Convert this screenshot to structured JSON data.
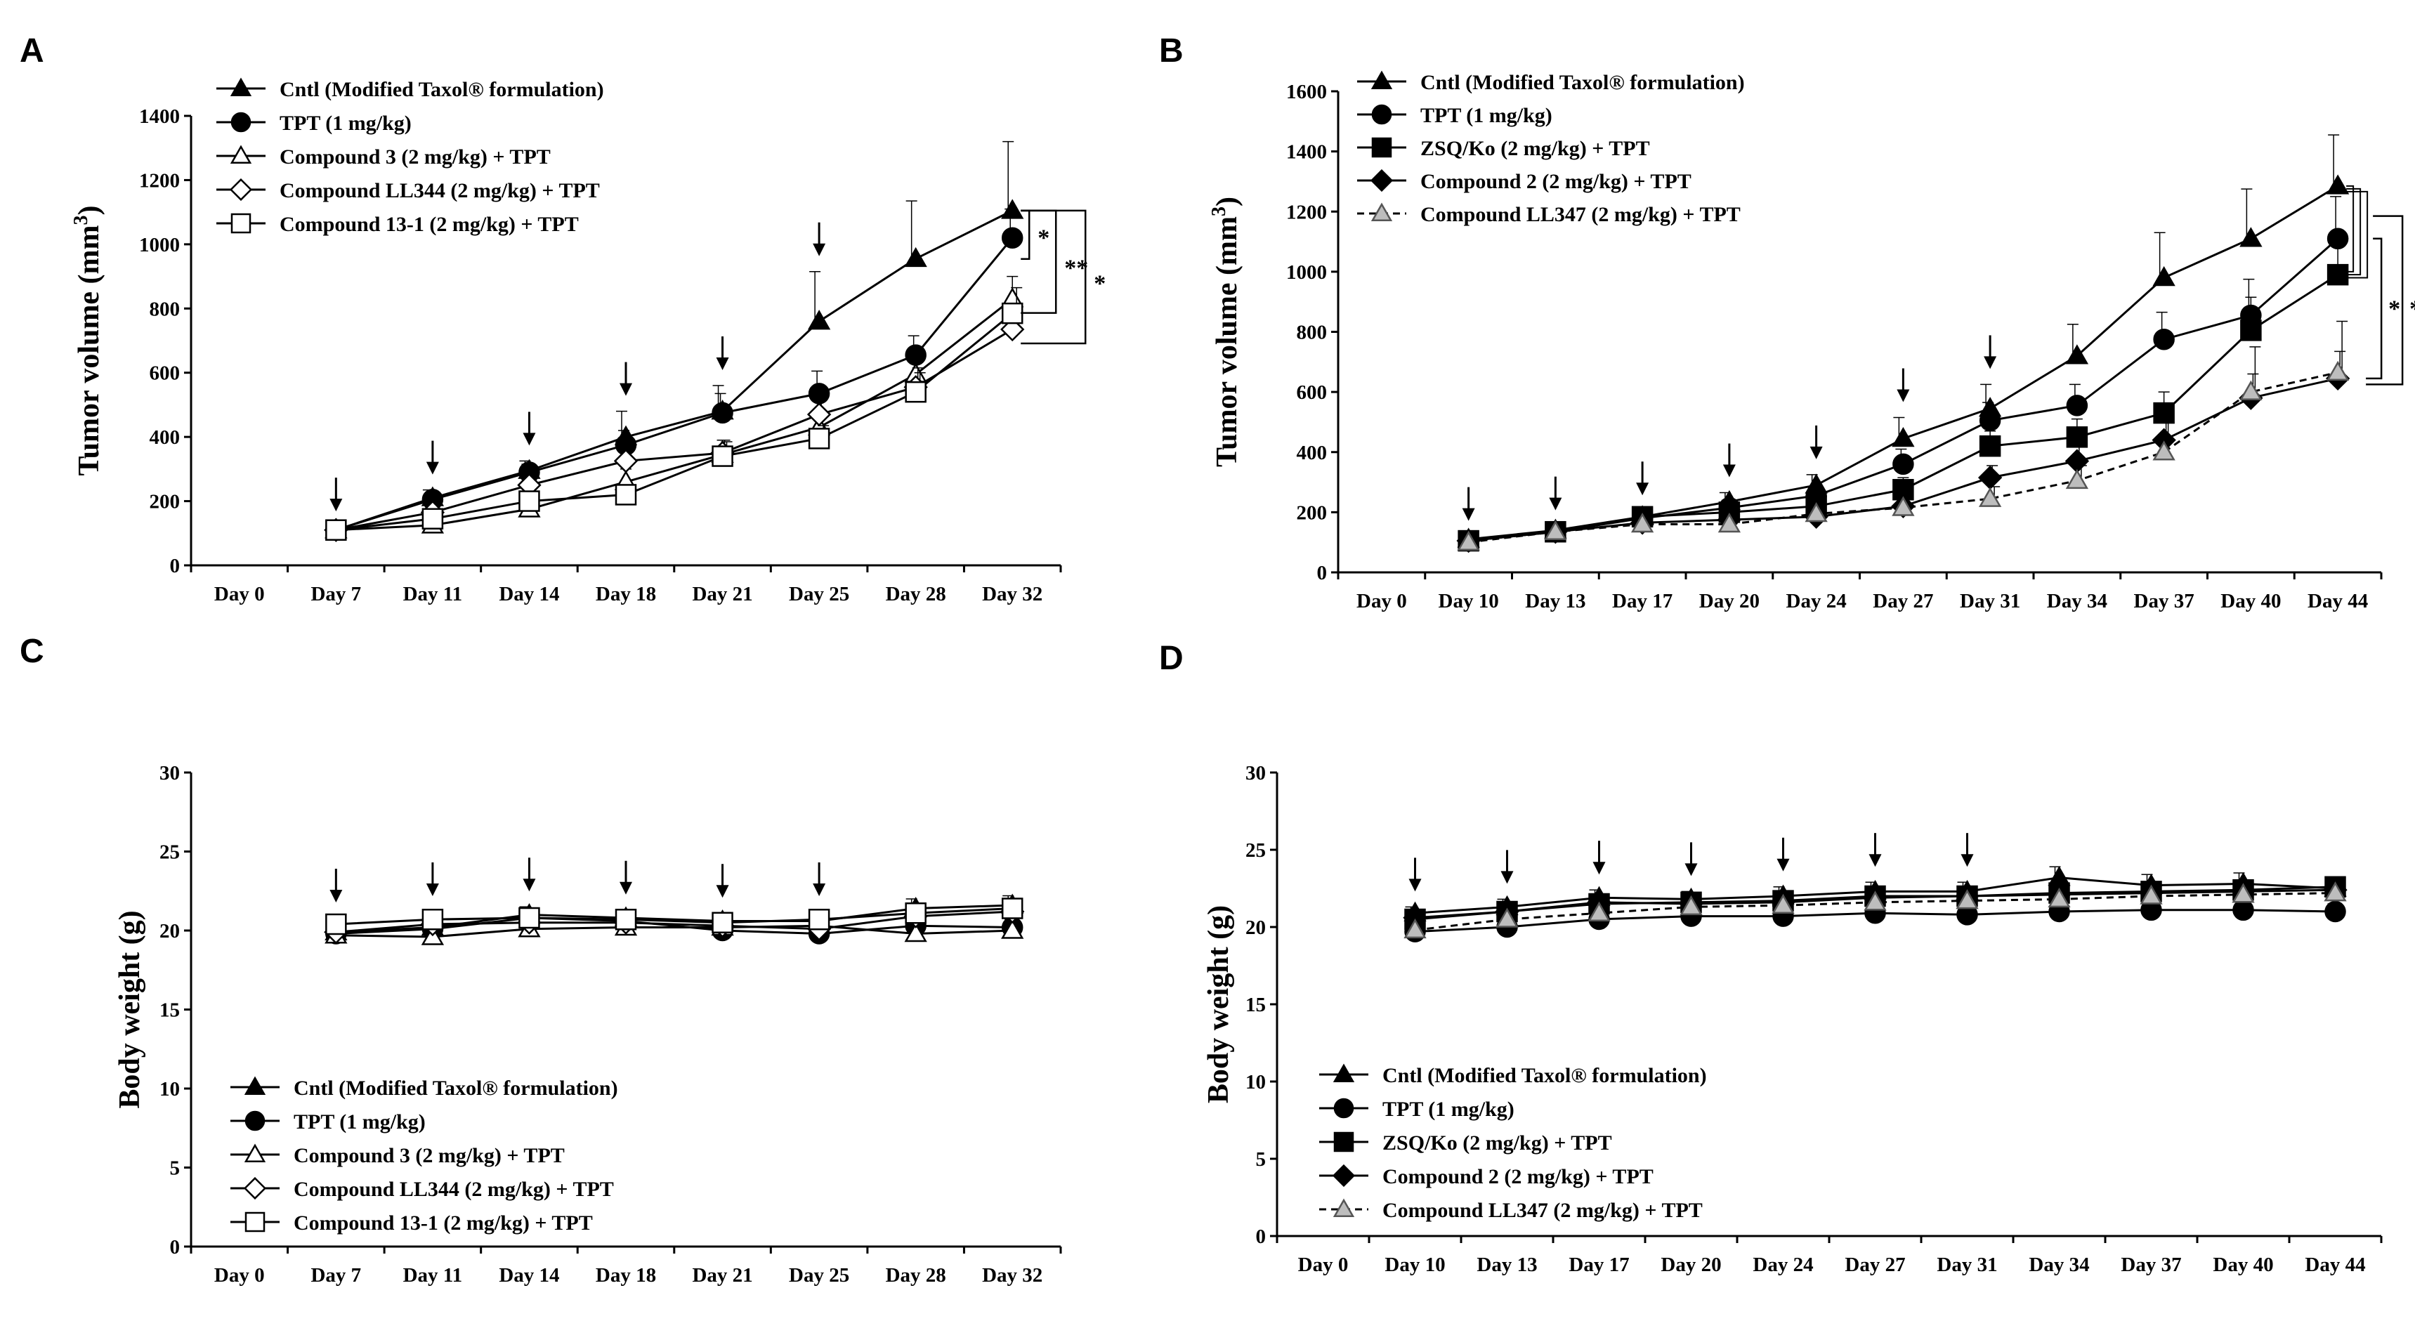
{
  "chart_data": [
    {
      "panel": "A",
      "type": "line",
      "ylabel": "Tumor volume (mm3)",
      "ylabel_main": "Tumor volume (mm",
      "ylabel_sup": "3",
      "ylabel_end": ")",
      "ylim": [
        0,
        1400
      ],
      "yticks": [
        0,
        200,
        400,
        600,
        800,
        1000,
        1200,
        1400
      ],
      "categories": [
        "Day 0",
        "Day 7",
        "Day 11",
        "Day 14",
        "Day 18",
        "Day 21",
        "Day 25",
        "Day 28",
        "Day 32"
      ],
      "arrows_at": [
        "Day 7",
        "Day 11",
        "Day 14",
        "Day 18",
        "Day 21",
        "Day 25"
      ],
      "significance": [
        "*",
        "**",
        "*"
      ],
      "series": [
        {
          "name": "Cntl (Modified Taxol® formulation)",
          "marker": "triangle-filled",
          "dashed": false,
          "values": [
            null,
            110,
            210,
            295,
            400,
            480,
            760,
            955,
            1105
          ],
          "err": [
            null,
            10,
            25,
            30,
            80,
            80,
            155,
            180,
            215
          ]
        },
        {
          "name": "TPT (1 mg/kg)",
          "marker": "circle-filled",
          "dashed": false,
          "values": [
            null,
            110,
            205,
            290,
            375,
            475,
            535,
            655,
            1020
          ],
          "err": [
            null,
            10,
            20,
            25,
            45,
            60,
            70,
            60,
            90
          ]
        },
        {
          "name": "Compound 3 (2 mg/kg) + TPT",
          "marker": "triangle-open",
          "dashed": false,
          "values": [
            null,
            110,
            125,
            175,
            260,
            345,
            430,
            595,
            830
          ],
          "err": [
            null,
            10,
            15,
            20,
            40,
            45,
            50,
            60,
            70
          ]
        },
        {
          "name": "Compound LL344 (2 mg/kg) + TPT",
          "marker": "diamond-open",
          "dashed": false,
          "values": [
            null,
            110,
            165,
            250,
            325,
            350,
            470,
            555,
            735
          ],
          "err": [
            null,
            10,
            20,
            25,
            40,
            40,
            50,
            60,
            70
          ]
        },
        {
          "name": "Compound 13-1 (2 mg/kg) + TPT",
          "marker": "square-open",
          "dashed": false,
          "values": [
            null,
            110,
            145,
            200,
            220,
            340,
            395,
            540,
            785
          ],
          "err": [
            null,
            10,
            20,
            25,
            30,
            45,
            40,
            60,
            80
          ]
        }
      ]
    },
    {
      "panel": "B",
      "type": "line",
      "ylabel": "Tumor volume (mm3)",
      "ylabel_main": "Tumor volume (mm",
      "ylabel_sup": "3",
      "ylabel_end": ")",
      "ylim": [
        0,
        1600
      ],
      "yticks": [
        0,
        200,
        400,
        600,
        800,
        1000,
        1200,
        1400,
        1600
      ],
      "categories": [
        "Day 0",
        "Day 10",
        "Day 13",
        "Day 17",
        "Day 20",
        "Day 24",
        "Day 27",
        "Day 31",
        "Day 34",
        "Day 37",
        "Day 40",
        "Day 44"
      ],
      "arrows_at": [
        "Day 10",
        "Day 13",
        "Day 17",
        "Day 20",
        "Day 24",
        "Day 27",
        "Day 31"
      ],
      "significance": [
        "*",
        "*"
      ],
      "series": [
        {
          "name": "Cntl (Modified Taxol® formulation)",
          "marker": "triangle-filled",
          "dashed": false,
          "values": [
            null,
            110,
            140,
            185,
            235,
            290,
            445,
            545,
            720,
            980,
            1110,
            1285
          ],
          "err": [
            null,
            10,
            15,
            20,
            30,
            35,
            70,
            80,
            105,
            150,
            165,
            170
          ]
        },
        {
          "name": "TPT (1 mg/kg)",
          "marker": "circle-filled",
          "dashed": false,
          "values": [
            null,
            105,
            135,
            180,
            215,
            255,
            360,
            505,
            555,
            775,
            855,
            1110
          ],
          "err": [
            null,
            10,
            15,
            20,
            25,
            30,
            50,
            60,
            70,
            90,
            120,
            140
          ]
        },
        {
          "name": "ZSQ/Ko (2 mg/kg) + TPT",
          "marker": "square-filled",
          "dashed": false,
          "values": [
            null,
            105,
            135,
            185,
            200,
            220,
            275,
            420,
            450,
            530,
            805,
            990
          ],
          "err": [
            null,
            10,
            15,
            20,
            25,
            25,
            40,
            50,
            60,
            70,
            110,
            120
          ]
        },
        {
          "name": "Compound 2 (2 mg/kg) + TPT",
          "marker": "diamond-filled",
          "dashed": false,
          "values": [
            null,
            105,
            135,
            165,
            175,
            185,
            220,
            315,
            370,
            440,
            580,
            645
          ],
          "err": [
            null,
            10,
            15,
            15,
            20,
            20,
            30,
            40,
            50,
            60,
            80,
            90
          ]
        },
        {
          "name": "Compound LL347 (2 mg/kg) + TPT",
          "marker": "triangle-grey",
          "dashed": true,
          "values": [
            null,
            100,
            135,
            160,
            160,
            195,
            215,
            245,
            305,
            400,
            600,
            665
          ],
          "err": [
            null,
            10,
            15,
            15,
            20,
            20,
            30,
            40,
            50,
            100,
            150,
            170
          ]
        }
      ]
    },
    {
      "panel": "C",
      "type": "line",
      "ylabel": "Body weight (g)",
      "ylim": [
        0,
        30
      ],
      "yticks": [
        0,
        5,
        10,
        15,
        20,
        25,
        30
      ],
      "categories": [
        "Day 0",
        "Day 7",
        "Day 11",
        "Day 14",
        "Day 18",
        "Day 21",
        "Day 25",
        "Day 28",
        "Day 32"
      ],
      "arrows_at": [
        "Day 7",
        "Day 11",
        "Day 14",
        "Day 18",
        "Day 21",
        "Day 25"
      ],
      "series": [
        {
          "name": "Cntl (Modified Taxol® formulation)",
          "marker": "triangle-filled",
          "dashed": false,
          "values": [
            null,
            19.9,
            20.2,
            21.0,
            20.8,
            20.6,
            20.6,
            21.4,
            21.6
          ],
          "err": [
            null,
            0.4,
            0.5,
            0.5,
            0.5,
            0.5,
            0.5,
            0.6,
            0.6
          ]
        },
        {
          "name": "TPT (1 mg/kg)",
          "marker": "circle-filled",
          "dashed": false,
          "values": [
            null,
            19.8,
            20.1,
            20.8,
            20.6,
            20.0,
            19.8,
            20.3,
            20.2
          ],
          "err": [
            null,
            0.4,
            0.5,
            0.5,
            0.5,
            0.5,
            0.5,
            0.5,
            0.5
          ]
        },
        {
          "name": "Compound 3 (2 mg/kg) + TPT",
          "marker": "triangle-open",
          "dashed": false,
          "values": [
            null,
            19.7,
            19.6,
            20.1,
            20.2,
            20.2,
            20.3,
            19.8,
            20.0
          ],
          "err": [
            null,
            0.4,
            0.6,
            0.5,
            0.5,
            0.5,
            0.5,
            0.5,
            0.5
          ]
        },
        {
          "name": "Compound LL344 (2 mg/kg) + TPT",
          "marker": "diamond-open",
          "dashed": false,
          "values": [
            null,
            19.9,
            20.4,
            20.5,
            20.5,
            20.3,
            20.1,
            20.9,
            21.2
          ],
          "err": [
            null,
            0.4,
            0.5,
            0.5,
            0.5,
            0.5,
            0.5,
            0.5,
            0.5
          ]
        },
        {
          "name": "Compound 13-1 (2 mg/kg) + TPT",
          "marker": "square-open",
          "dashed": false,
          "values": [
            null,
            20.4,
            20.7,
            20.8,
            20.7,
            20.5,
            20.7,
            21.1,
            21.4
          ],
          "err": [
            null,
            0.4,
            0.5,
            0.5,
            0.5,
            0.5,
            0.5,
            0.5,
            0.5
          ]
        }
      ]
    },
    {
      "panel": "D",
      "type": "line",
      "ylabel": "Body weight (g)",
      "ylim": [
        0,
        30
      ],
      "yticks": [
        0,
        5,
        10,
        15,
        20,
        25,
        30
      ],
      "categories": [
        "Day 0",
        "Day 10",
        "Day 13",
        "Day 17",
        "Day 20",
        "Day 24",
        "Day 27",
        "Day 31",
        "Day 34",
        "Day 37",
        "Day 40",
        "Day 44"
      ],
      "arrows_at": [
        "Day 10",
        "Day 13",
        "Day 17",
        "Day 20",
        "Day 24",
        "Day 27",
        "Day 31"
      ],
      "series": [
        {
          "name": "Cntl (Modified Taxol® formulation)",
          "marker": "triangle-filled",
          "dashed": false,
          "values": [
            null,
            20.9,
            21.3,
            21.9,
            21.8,
            22.0,
            22.3,
            22.3,
            23.2,
            22.7,
            22.8,
            22.5
          ],
          "err": [
            null,
            0.4,
            0.5,
            0.5,
            0.5,
            0.6,
            0.6,
            0.6,
            0.7,
            0.7,
            0.7,
            0.6
          ]
        },
        {
          "name": "TPT (1 mg/kg)",
          "marker": "circle-filled",
          "dashed": false,
          "values": [
            null,
            19.7,
            20.0,
            20.5,
            20.7,
            20.7,
            20.9,
            20.8,
            21.0,
            21.1,
            21.1,
            21.0
          ],
          "err": [
            null,
            0.4,
            0.4,
            0.5,
            0.5,
            0.5,
            0.5,
            0.5,
            0.5,
            0.5,
            0.5,
            0.5
          ]
        },
        {
          "name": "ZSQ/Ko (2 mg/kg) + TPT",
          "marker": "square-filled",
          "dashed": false,
          "values": [
            null,
            20.5,
            21.0,
            21.5,
            21.6,
            21.7,
            22.0,
            22.0,
            22.2,
            22.3,
            22.4,
            22.6
          ],
          "err": [
            null,
            0.4,
            0.5,
            0.5,
            0.5,
            0.5,
            0.5,
            0.5,
            0.5,
            0.5,
            0.5,
            0.5
          ]
        },
        {
          "name": "Compound 2 (2 mg/kg) + TPT",
          "marker": "diamond-filled",
          "dashed": false,
          "values": [
            null,
            20.6,
            21.0,
            21.6,
            21.5,
            21.6,
            21.9,
            22.0,
            22.1,
            22.2,
            22.3,
            22.4
          ],
          "err": [
            null,
            0.4,
            0.5,
            0.5,
            0.5,
            0.5,
            0.5,
            0.5,
            0.5,
            0.5,
            0.5,
            0.5
          ]
        },
        {
          "name": "Compound LL347 (2 mg/kg) + TPT",
          "marker": "triangle-grey",
          "dashed": true,
          "values": [
            null,
            19.8,
            20.5,
            20.9,
            21.3,
            21.4,
            21.6,
            21.7,
            21.8,
            22.0,
            22.1,
            22.2
          ],
          "err": [
            null,
            0.4,
            0.5,
            0.5,
            0.5,
            0.5,
            0.5,
            0.5,
            0.5,
            0.5,
            0.5,
            0.5
          ]
        }
      ]
    }
  ]
}
